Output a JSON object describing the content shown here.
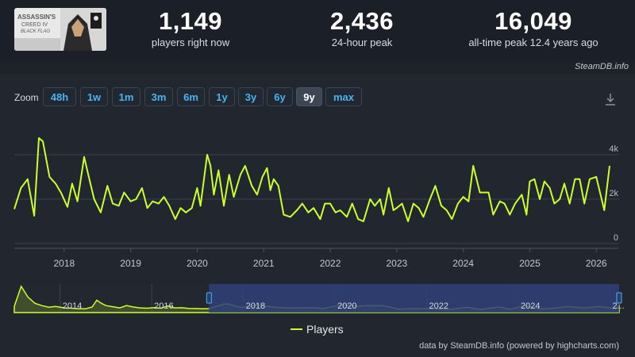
{
  "game": {
    "cover_alt": "Assassin's Creed IV Black Flag"
  },
  "stats": [
    {
      "value": "1,149",
      "label": "players right now"
    },
    {
      "value": "2,436",
      "label": "24-hour peak"
    },
    {
      "value": "16,049",
      "label": "all-time peak 12.4 years ago"
    }
  ],
  "credit_top": "SteamDB.info",
  "zoom": {
    "label": "Zoom",
    "buttons": [
      "48h",
      "1w",
      "1m",
      "3m",
      "6m",
      "1y",
      "3y",
      "6y",
      "9y",
      "max"
    ],
    "active": "9y"
  },
  "colors": {
    "line": "#cbff2e",
    "grid": "#384150",
    "navigator_mask": "#2f3f78"
  },
  "chart_data": {
    "type": "line",
    "series": [
      {
        "name": "Players",
        "points": [
          [
            2017.25,
            1550
          ],
          [
            2017.35,
            2500
          ],
          [
            2017.45,
            2900
          ],
          [
            2017.55,
            1250
          ],
          [
            2017.62,
            4750
          ],
          [
            2017.68,
            4600
          ],
          [
            2017.78,
            3000
          ],
          [
            2017.87,
            2700
          ],
          [
            2017.95,
            2300
          ],
          [
            2018.05,
            1650
          ],
          [
            2018.12,
            2700
          ],
          [
            2018.2,
            1900
          ],
          [
            2018.3,
            3900
          ],
          [
            2018.37,
            3000
          ],
          [
            2018.45,
            2000
          ],
          [
            2018.55,
            1400
          ],
          [
            2018.65,
            2600
          ],
          [
            2018.73,
            1800
          ],
          [
            2018.82,
            1700
          ],
          [
            2018.9,
            2300
          ],
          [
            2019.0,
            1900
          ],
          [
            2019.08,
            2000
          ],
          [
            2019.17,
            2500
          ],
          [
            2019.25,
            1600
          ],
          [
            2019.33,
            1900
          ],
          [
            2019.42,
            1800
          ],
          [
            2019.5,
            2100
          ],
          [
            2019.58,
            1700
          ],
          [
            2019.67,
            1100
          ],
          [
            2019.75,
            1600
          ],
          [
            2019.83,
            1400
          ],
          [
            2019.92,
            1600
          ],
          [
            2020.0,
            2500
          ],
          [
            2020.05,
            1700
          ],
          [
            2020.15,
            4000
          ],
          [
            2020.2,
            3500
          ],
          [
            2020.25,
            2200
          ],
          [
            2020.32,
            3300
          ],
          [
            2020.4,
            1700
          ],
          [
            2020.48,
            3100
          ],
          [
            2020.55,
            2100
          ],
          [
            2020.65,
            3100
          ],
          [
            2020.72,
            3500
          ],
          [
            2020.82,
            2600
          ],
          [
            2020.9,
            2200
          ],
          [
            2020.98,
            3000
          ],
          [
            2021.05,
            3400
          ],
          [
            2021.1,
            2400
          ],
          [
            2021.15,
            2900
          ],
          [
            2021.22,
            2600
          ],
          [
            2021.3,
            1300
          ],
          [
            2021.4,
            1200
          ],
          [
            2021.5,
            1500
          ],
          [
            2021.58,
            1800
          ],
          [
            2021.67,
            1400
          ],
          [
            2021.75,
            1600
          ],
          [
            2021.85,
            1100
          ],
          [
            2021.92,
            1800
          ],
          [
            2022.0,
            1800
          ],
          [
            2022.08,
            1400
          ],
          [
            2022.15,
            1500
          ],
          [
            2022.25,
            1200
          ],
          [
            2022.33,
            1800
          ],
          [
            2022.42,
            1100
          ],
          [
            2022.5,
            1000
          ],
          [
            2022.6,
            2000
          ],
          [
            2022.67,
            1700
          ],
          [
            2022.75,
            2000
          ],
          [
            2022.8,
            1300
          ],
          [
            2022.88,
            2500
          ],
          [
            2022.95,
            1500
          ],
          [
            2023.0,
            1600
          ],
          [
            2023.08,
            1800
          ],
          [
            2023.17,
            1000
          ],
          [
            2023.25,
            1800
          ],
          [
            2023.33,
            1600
          ],
          [
            2023.4,
            1200
          ],
          [
            2023.5,
            2000
          ],
          [
            2023.58,
            2600
          ],
          [
            2023.67,
            1700
          ],
          [
            2023.75,
            1500
          ],
          [
            2023.83,
            1100
          ],
          [
            2023.92,
            1800
          ],
          [
            2024.0,
            2100
          ],
          [
            2024.08,
            1900
          ],
          [
            2024.15,
            3500
          ],
          [
            2024.25,
            2300
          ],
          [
            2024.3,
            2300
          ],
          [
            2024.38,
            2300
          ],
          [
            2024.45,
            1300
          ],
          [
            2024.55,
            1900
          ],
          [
            2024.62,
            1800
          ],
          [
            2024.7,
            1300
          ],
          [
            2024.78,
            1800
          ],
          [
            2024.88,
            2200
          ],
          [
            2024.95,
            1300
          ],
          [
            2025.0,
            2800
          ],
          [
            2025.07,
            2900
          ],
          [
            2025.15,
            2000
          ],
          [
            2025.22,
            2800
          ],
          [
            2025.3,
            2500
          ],
          [
            2025.37,
            1800
          ],
          [
            2025.45,
            2000
          ],
          [
            2025.52,
            2700
          ],
          [
            2025.6,
            1800
          ],
          [
            2025.68,
            2900
          ],
          [
            2025.75,
            2900
          ],
          [
            2025.82,
            1800
          ],
          [
            2025.9,
            2900
          ],
          [
            2026.0,
            3000
          ],
          [
            2026.12,
            1500
          ],
          [
            2026.2,
            3500
          ]
        ]
      }
    ],
    "x_ticks": [
      "2018",
      "2019",
      "2020",
      "2021",
      "2022",
      "2023",
      "2024",
      "2025",
      "2026"
    ],
    "y_ticks": [
      "0",
      "2k",
      "4k"
    ],
    "xlim": [
      2017.25,
      2026.2
    ],
    "ylim": [
      0,
      4800
    ],
    "legend": "bottom-center",
    "grid": true,
    "navigator": {
      "labels": [
        "2014",
        "2016",
        "2018",
        "2020",
        "2022",
        "2024",
        "2..."
      ],
      "xlim": [
        2013.0,
        2026.2
      ],
      "selected": [
        2017.25,
        2026.2
      ],
      "points": [
        [
          2013.0,
          3000
        ],
        [
          2013.15,
          16000
        ],
        [
          2013.3,
          9000
        ],
        [
          2013.45,
          5000
        ],
        [
          2013.6,
          3500
        ],
        [
          2013.75,
          2500
        ],
        [
          2013.9,
          3000
        ],
        [
          2014.1,
          2000
        ],
        [
          2014.25,
          1800
        ],
        [
          2014.4,
          1500
        ],
        [
          2014.55,
          1400
        ],
        [
          2014.7,
          2600
        ],
        [
          2014.8,
          7000
        ],
        [
          2014.9,
          5000
        ],
        [
          2015.0,
          3500
        ],
        [
          2015.15,
          2800
        ],
        [
          2015.3,
          2000
        ],
        [
          2015.45,
          3500
        ],
        [
          2015.6,
          2600
        ],
        [
          2015.75,
          2000
        ],
        [
          2015.9,
          1800
        ],
        [
          2016.05,
          2200
        ],
        [
          2016.2,
          1800
        ],
        [
          2016.35,
          3300
        ],
        [
          2016.5,
          2000
        ],
        [
          2016.65,
          2100
        ],
        [
          2016.8,
          1700
        ],
        [
          2016.95,
          1600
        ],
        [
          2017.1,
          1400
        ],
        [
          2017.25,
          1550
        ],
        [
          2017.62,
          4750
        ],
        [
          2017.95,
          2300
        ],
        [
          2018.3,
          3900
        ],
        [
          2018.65,
          2600
        ],
        [
          2019.0,
          1900
        ],
        [
          2019.5,
          2100
        ],
        [
          2019.75,
          1600
        ],
        [
          2020.15,
          4000
        ],
        [
          2020.48,
          3100
        ],
        [
          2020.72,
          3500
        ],
        [
          2021.05,
          3400
        ],
        [
          2021.4,
          1200
        ],
        [
          2021.75,
          1600
        ],
        [
          2022.08,
          1400
        ],
        [
          2022.5,
          1000
        ],
        [
          2022.88,
          2500
        ],
        [
          2023.17,
          1000
        ],
        [
          2023.58,
          2600
        ],
        [
          2023.83,
          1100
        ],
        [
          2024.15,
          3500
        ],
        [
          2024.45,
          1300
        ],
        [
          2024.78,
          1800
        ],
        [
          2025.07,
          2900
        ],
        [
          2025.45,
          2000
        ],
        [
          2025.75,
          2900
        ],
        [
          2026.12,
          1500
        ],
        [
          2026.2,
          3500
        ]
      ],
      "ylim": [
        0,
        16500
      ]
    }
  },
  "legend": {
    "label": "Players"
  },
  "credit_bottom": "data by SteamDB.info (powered by highcharts.com)"
}
